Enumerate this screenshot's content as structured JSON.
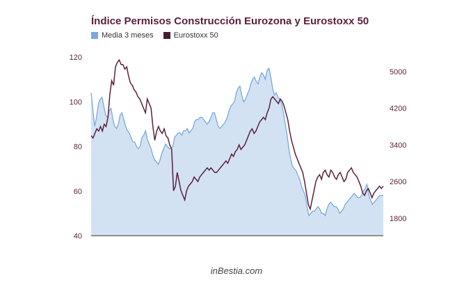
{
  "chart_data": {
    "type": "area",
    "title": "Índice Permisos Construcción Eurozona y Eurostoxx 50",
    "legend_position": "top-left",
    "grid": false,
    "y_left": {
      "ticks": [
        40,
        60,
        80,
        100,
        120
      ],
      "range": [
        40,
        120
      ]
    },
    "y_right": {
      "ticks": [
        1800,
        2600,
        3400,
        4200,
        5000
      ],
      "range": [
        1500,
        5600
      ]
    },
    "series": [
      {
        "name": "Media 3 meses",
        "type": "area",
        "axis": "left",
        "color": "#7aa9dc",
        "fill": "#d2e2f3",
        "values": [
          104,
          96,
          89,
          93,
          99,
          101,
          102,
          98,
          94,
          93,
          96,
          97,
          92,
          89,
          88,
          90,
          94,
          95,
          92,
          89,
          87,
          86,
          84,
          82,
          82,
          80,
          79,
          80,
          84,
          85,
          87,
          83,
          81,
          79,
          76,
          74,
          73,
          72,
          74,
          77,
          79,
          81,
          80,
          79,
          79,
          80,
          84,
          85,
          86,
          86,
          85,
          87,
          87,
          88,
          86,
          87,
          88,
          91,
          92,
          92,
          93,
          93,
          92,
          91,
          90,
          91,
          93,
          95,
          95,
          92,
          89,
          88,
          89,
          90,
          91,
          93,
          96,
          98,
          99,
          100,
          104,
          106,
          107,
          103,
          100,
          101,
          103,
          105,
          108,
          110,
          111,
          109,
          108,
          111,
          113,
          112,
          110,
          114,
          115,
          111,
          106,
          103,
          104,
          102,
          101,
          99,
          95,
          90,
          85,
          79,
          74,
          71,
          70,
          69,
          67,
          65,
          62,
          60,
          58,
          53,
          49,
          50,
          51,
          51,
          52,
          53,
          52,
          50,
          50,
          49,
          52,
          54,
          55,
          54,
          53,
          53,
          52,
          50,
          51,
          52,
          54,
          55,
          56,
          57,
          58,
          59,
          58,
          57,
          57,
          58,
          60,
          61,
          63,
          58,
          56,
          54,
          55,
          56,
          57,
          58,
          58,
          58
        ]
      },
      {
        "name": "Eurostoxx 50",
        "type": "line",
        "axis": "right",
        "color": "#5a1f3a",
        "values": [
          3600,
          3550,
          3650,
          3750,
          3700,
          3800,
          3700,
          3850,
          3800,
          4000,
          4500,
          4800,
          4700,
          5100,
          5200,
          5250,
          5150,
          5150,
          5050,
          5100,
          4900,
          4750,
          4700,
          4600,
          4550,
          4450,
          4400,
          4300,
          4200,
          4100,
          4400,
          4300,
          4200,
          3800,
          3500,
          3700,
          3800,
          3700,
          3650,
          3750,
          3600,
          3550,
          3400,
          3300,
          2400,
          2500,
          2800,
          2600,
          2400,
          2300,
          2200,
          2400,
          2500,
          2550,
          2600,
          2700,
          2650,
          2600,
          2700,
          2750,
          2800,
          2850,
          2900,
          2850,
          2900,
          2850,
          2800,
          2800,
          2850,
          2900,
          2950,
          3000,
          3050,
          3000,
          3100,
          3200,
          3150,
          3250,
          3300,
          3400,
          3300,
          3350,
          3400,
          3500,
          3600,
          3700,
          3750,
          3650,
          3700,
          3800,
          3900,
          3950,
          4000,
          3950,
          4100,
          4200,
          4400,
          4450,
          4400,
          4350,
          4300,
          4400,
          4350,
          4250,
          4100,
          3950,
          3700,
          3500,
          3350,
          3200,
          3100,
          3000,
          2900,
          2800,
          2600,
          2350,
          2100,
          2000,
          2200,
          2400,
          2600,
          2700,
          2750,
          2650,
          2800,
          2850,
          2750,
          2700,
          2850,
          2800,
          2700,
          2650,
          2750,
          2800,
          2700,
          2600,
          2650,
          2800,
          2850,
          2900,
          2800,
          2750,
          2700,
          2600,
          2500,
          2350,
          2300,
          2400,
          2450,
          2350,
          2250,
          2350,
          2400,
          2450,
          2500,
          2450,
          2500
        ]
      }
    ]
  },
  "watermark": "inBestia.com",
  "colors": {
    "axis": "#555555",
    "text": "#5a1f3a"
  }
}
